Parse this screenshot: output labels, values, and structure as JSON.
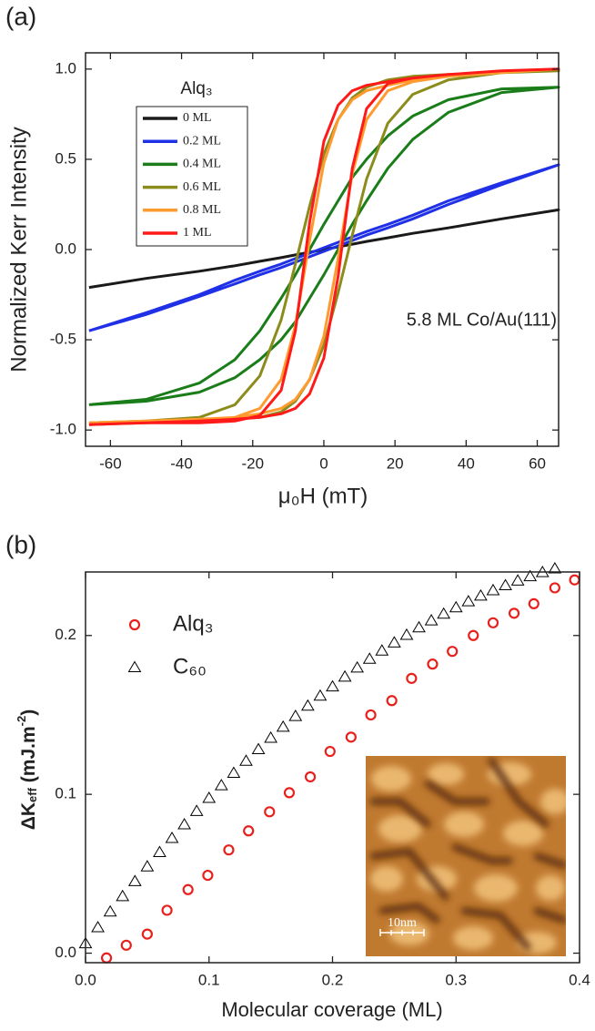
{
  "chart_data": [
    {
      "type": "line",
      "label": "(a)",
      "xlabel": "μ₀H (mT)",
      "ylabel": "Normalized Kerr Intensity",
      "legend_title": "Alq₃",
      "annotation": "5.8 ML Co/Au(111)",
      "x": [
        -66,
        -50,
        -35,
        -25,
        -18,
        -12,
        -8,
        -4,
        0,
        4,
        8,
        12,
        18,
        25,
        35,
        50,
        66,
        50,
        35,
        25,
        18,
        12,
        8,
        4,
        0,
        -4,
        -8,
        -12,
        -18,
        -25,
        -35,
        -50,
        -66
      ],
      "xlim": [
        -67,
        66
      ],
      "ylim": [
        -1.09,
        1.09
      ],
      "xticks": [
        -60,
        -40,
        -20,
        0,
        20,
        40,
        60
      ],
      "yticks": [
        {
          "value": -1,
          "label": "-1.0"
        },
        {
          "value": -0.5,
          "label": "-0.5"
        },
        {
          "value": 0,
          "label": "0.0"
        },
        {
          "value": 0.5,
          "label": "0.5"
        },
        {
          "value": 1,
          "label": "1.0"
        }
      ],
      "series": [
        {
          "name": "0 ML",
          "color": "#1a1a1a",
          "values": [
            -0.21,
            -0.16,
            -0.12,
            -0.09,
            -0.065,
            -0.045,
            -0.03,
            -0.015,
            0,
            0.015,
            0.03,
            0.045,
            0.065,
            0.09,
            0.12,
            0.17,
            0.22,
            0.17,
            0.12,
            0.09,
            0.065,
            0.045,
            0.03,
            0.015,
            0,
            -0.015,
            -0.03,
            -0.045,
            -0.065,
            -0.09,
            -0.12,
            -0.16,
            -0.21
          ]
        },
        {
          "name": "0.2 ML",
          "color": "#1f30e6",
          "values": [
            -0.45,
            -0.36,
            -0.26,
            -0.19,
            -0.14,
            -0.1,
            -0.07,
            -0.04,
            -0.01,
            0.02,
            0.05,
            0.08,
            0.12,
            0.17,
            0.25,
            0.36,
            0.47,
            0.37,
            0.27,
            0.19,
            0.14,
            0.1,
            0.07,
            0.04,
            0.01,
            -0.02,
            -0.05,
            -0.08,
            -0.12,
            -0.17,
            -0.25,
            -0.35,
            -0.45
          ]
        },
        {
          "name": "0.4 ML",
          "color": "#1a7d1a",
          "values": [
            -0.86,
            -0.84,
            -0.79,
            -0.71,
            -0.61,
            -0.5,
            -0.4,
            -0.27,
            -0.14,
            0,
            0.14,
            0.27,
            0.45,
            0.61,
            0.76,
            0.87,
            0.9,
            0.89,
            0.83,
            0.74,
            0.63,
            0.5,
            0.4,
            0.27,
            0.14,
            0,
            -0.14,
            -0.27,
            -0.45,
            -0.61,
            -0.74,
            -0.83,
            -0.86
          ]
        },
        {
          "name": "0.6 ML",
          "color": "#8c8c1c",
          "values": [
            -0.97,
            -0.96,
            -0.95,
            -0.94,
            -0.93,
            -0.9,
            -0.84,
            -0.72,
            -0.53,
            -0.24,
            0.08,
            0.39,
            0.7,
            0.86,
            0.94,
            0.98,
            0.99,
            0.98,
            0.97,
            0.96,
            0.94,
            0.9,
            0.84,
            0.72,
            0.53,
            0.24,
            -0.08,
            -0.39,
            -0.7,
            -0.86,
            -0.93,
            -0.95,
            -0.96
          ]
        },
        {
          "name": "0.8 ML",
          "color": "#ff9b2e",
          "values": [
            -0.96,
            -0.95,
            -0.94,
            -0.93,
            -0.91,
            -0.88,
            -0.83,
            -0.72,
            -0.48,
            -0.05,
            0.42,
            0.72,
            0.88,
            0.93,
            0.96,
            0.98,
            1.0,
            0.98,
            0.96,
            0.94,
            0.91,
            0.88,
            0.83,
            0.72,
            0.48,
            0.05,
            -0.42,
            -0.72,
            -0.88,
            -0.93,
            -0.95,
            -0.96,
            -0.96
          ]
        },
        {
          "name": "1 ML",
          "color": "#ff1a1a",
          "values": [
            -0.97,
            -0.96,
            -0.95,
            -0.94,
            -0.93,
            -0.91,
            -0.88,
            -0.8,
            -0.6,
            -0.15,
            0.45,
            0.78,
            0.92,
            0.95,
            0.97,
            0.99,
            1.0,
            0.99,
            0.97,
            0.95,
            0.93,
            0.91,
            0.88,
            0.8,
            0.6,
            0.15,
            -0.45,
            -0.78,
            -0.92,
            -0.95,
            -0.96,
            -0.96,
            -0.97
          ]
        }
      ]
    },
    {
      "type": "scatter",
      "label": "(b)",
      "xlabel": "Molecular coverage (ML)",
      "ylabel": [
        "ΔK",
        "eff",
        " (mJ.m",
        "-2",
        ")"
      ],
      "inset_label": "10nm",
      "xlim": [
        0,
        0.4
      ],
      "ylim": [
        -0.006,
        0.24
      ],
      "xticks": [
        {
          "value": 0,
          "label": "0.0"
        },
        0.1,
        0.2,
        0.3,
        0.4
      ],
      "yticks": [
        {
          "value": 0,
          "label": "0.0"
        },
        0.1,
        0.2
      ],
      "series": [
        {
          "name": "Alq₃",
          "color": "#e8201c",
          "marker": "circle",
          "x": [
            0.017,
            0.033,
            0.05,
            0.066,
            0.083,
            0.099,
            0.116,
            0.132,
            0.149,
            0.165,
            0.182,
            0.198,
            0.215,
            0.231,
            0.248,
            0.264,
            0.281,
            0.297,
            0.314,
            0.33,
            0.347,
            0.363,
            0.38,
            0.396
          ],
          "values": [
            -0.003,
            0.005,
            0.012,
            0.027,
            0.04,
            0.049,
            0.065,
            0.077,
            0.089,
            0.101,
            0.111,
            0.127,
            0.136,
            0.15,
            0.159,
            0.173,
            0.182,
            0.19,
            0.2,
            0.208,
            0.214,
            0.22,
            0.23,
            0.235
          ]
        },
        {
          "name": "C₆₀",
          "color": "#000000",
          "marker": "triangle",
          "x": [
            0,
            0.01,
            0.02,
            0.03,
            0.04,
            0.05,
            0.06,
            0.07,
            0.08,
            0.09,
            0.1,
            0.11,
            0.12,
            0.13,
            0.14,
            0.15,
            0.16,
            0.17,
            0.18,
            0.19,
            0.2,
            0.21,
            0.22,
            0.23,
            0.24,
            0.25,
            0.26,
            0.27,
            0.28,
            0.29,
            0.3,
            0.31,
            0.32,
            0.33,
            0.34,
            0.35,
            0.36,
            0.37,
            0.38
          ],
          "values": [
            0.006,
            0.0161,
            0.026,
            0.0357,
            0.0451,
            0.0544,
            0.0634,
            0.0723,
            0.0809,
            0.0893,
            0.0975,
            0.1055,
            0.1133,
            0.1209,
            0.1282,
            0.1354,
            0.1423,
            0.1491,
            0.1556,
            0.1619,
            0.1677,
            0.1739,
            0.1796,
            0.1851,
            0.1903,
            0.1954,
            0.2002,
            0.2049,
            0.2093,
            0.2135,
            0.2175,
            0.2213,
            0.2249,
            0.2283,
            0.2314,
            0.2344,
            0.2371,
            0.2397,
            0.242
          ]
        }
      ]
    }
  ]
}
